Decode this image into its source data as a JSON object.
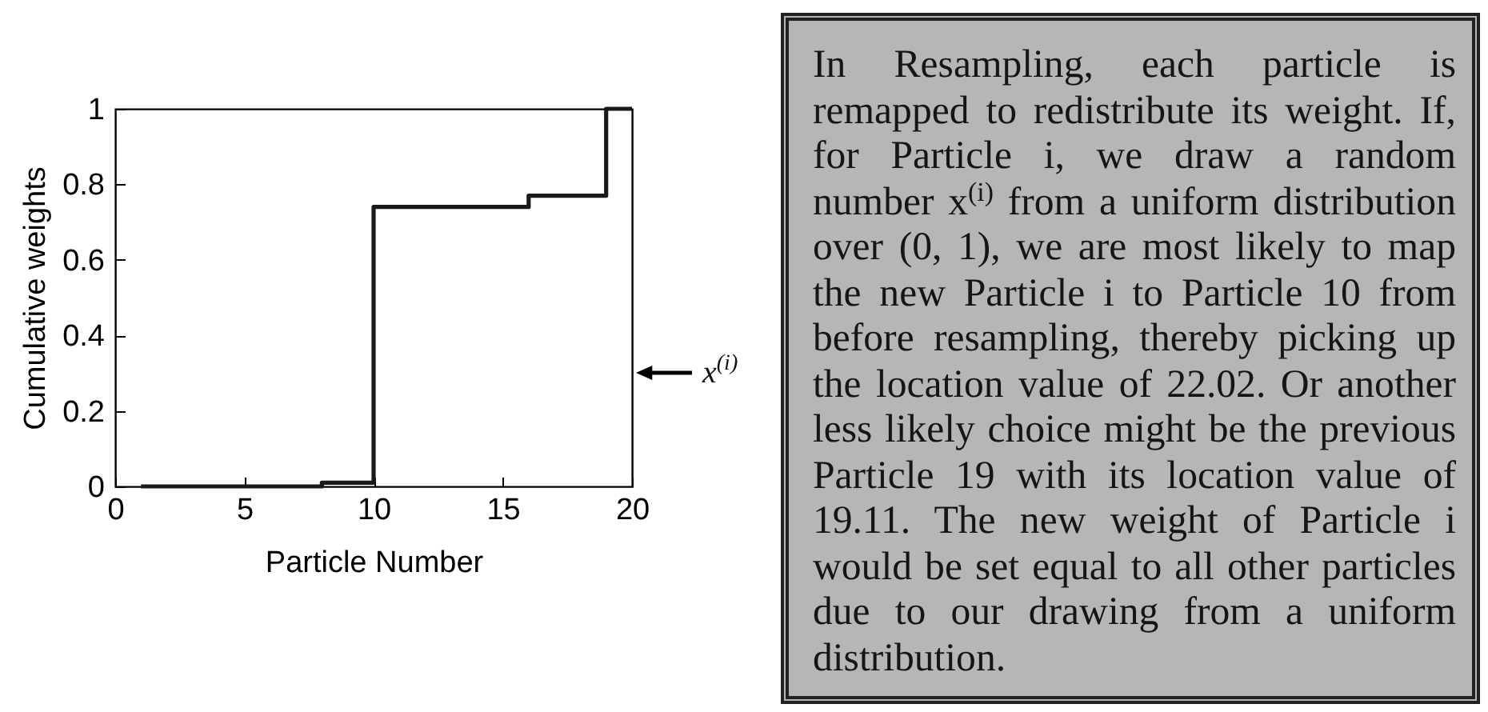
{
  "chart_data": [
    {
      "type": "step",
      "xlabel": "Particle Number",
      "ylabel": "Cumulative weights",
      "x": [
        1,
        2,
        3,
        4,
        5,
        6,
        7,
        8,
        9,
        10,
        11,
        12,
        13,
        14,
        15,
        16,
        17,
        18,
        19,
        20
      ],
      "values": [
        0,
        0,
        0,
        0,
        0,
        0,
        0,
        0.01,
        0.01,
        0.74,
        0.74,
        0.74,
        0.74,
        0.74,
        0.74,
        0.77,
        0.77,
        0.77,
        1,
        1
      ],
      "color": "#1a1a1a",
      "xlim": [
        0,
        20
      ],
      "xticks": [
        0,
        5,
        10,
        15,
        20
      ],
      "ylim": [
        0,
        1
      ],
      "yticks": [
        0,
        0.2,
        0.4,
        0.6,
        0.8,
        1
      ],
      "annotations": [
        "x$^{(i)}$"
      ]
    },
    {
      "type": "other",
      "annotations": [
        "In Resampling, each particle is remapped to redistribute its weight. If, for Particle i, we draw a random number x$^{(i)}$ from a uniform distribution over (0, 1), we are most likely to map the new Particle i to Particle 10 from before resampling, thereby picking up the location value of 22.02. Or another less likely choice might be the previous Particle 19 with its location value of 19.11. The new weight of Particle i would be set equal to all other particles due to our drawing from a uniform distribution."
      ]
    }
  ]
}
